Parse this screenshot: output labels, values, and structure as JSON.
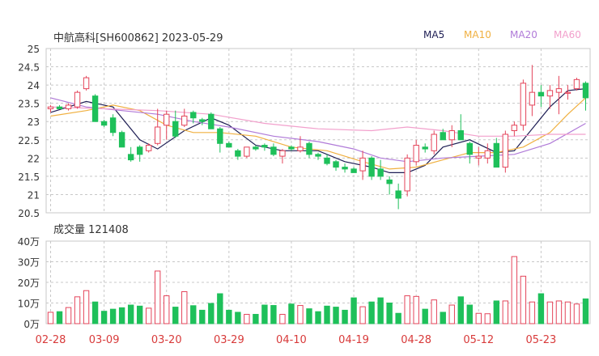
{
  "header": {
    "title": "中航高科[SH600862] 2023-05-29"
  },
  "legend": [
    {
      "label": "MA5",
      "color": "#1f1f55"
    },
    {
      "label": "MA10",
      "color": "#f0b040"
    },
    {
      "label": "MA20",
      "color": "#b07ad8"
    },
    {
      "label": "MA60",
      "color": "#f2a0cc"
    }
  ],
  "volume_header": {
    "label": "成交量 121408"
  },
  "colors": {
    "up": "#e4445a",
    "down": "#1ec05a",
    "grid": "#c8c8c8"
  },
  "chart_data": [
    {
      "type": "candlestick",
      "title": "中航高科[SH600862] 2023-05-29",
      "ylim": [
        20.5,
        25
      ],
      "y_ticks": [
        "20.5",
        "21",
        "21.5",
        "22",
        "22.5",
        "23",
        "23.5",
        "24",
        "24.5",
        "25"
      ],
      "x_tick_labels": [
        {
          "index": 0,
          "label": "02-28"
        },
        {
          "index": 6,
          "label": "03-09"
        },
        {
          "index": 13,
          "label": "03-20"
        },
        {
          "index": 20,
          "label": "03-29"
        },
        {
          "index": 27,
          "label": "04-10"
        },
        {
          "index": 34,
          "label": "04-19"
        },
        {
          "index": 41,
          "label": "04-28"
        },
        {
          "index": 48,
          "label": "05-12"
        },
        {
          "index": 55,
          "label": "05-23"
        }
      ],
      "ohlc": [
        [
          23.35,
          23.45,
          23.25,
          23.4
        ],
        [
          23.4,
          23.45,
          23.35,
          23.35
        ],
        [
          23.35,
          23.5,
          23.3,
          23.45
        ],
        [
          23.4,
          23.85,
          23.35,
          23.8
        ],
        [
          23.9,
          24.25,
          23.85,
          24.2
        ],
        [
          23.7,
          23.75,
          23.0,
          23.0
        ],
        [
          23.0,
          23.05,
          22.85,
          22.9
        ],
        [
          23.1,
          23.2,
          22.6,
          22.7
        ],
        [
          22.7,
          22.75,
          22.3,
          22.3
        ],
        [
          22.1,
          22.3,
          21.9,
          21.95
        ],
        [
          22.3,
          22.35,
          21.9,
          22.1
        ],
        [
          22.2,
          22.4,
          22.15,
          22.35
        ],
        [
          22.4,
          23.35,
          22.35,
          22.85
        ],
        [
          22.9,
          23.3,
          22.5,
          23.2
        ],
        [
          23.0,
          23.3,
          22.55,
          22.6
        ],
        [
          22.9,
          23.35,
          22.85,
          23.15
        ],
        [
          23.25,
          23.3,
          22.95,
          23.1
        ],
        [
          23.05,
          23.1,
          22.9,
          23.0
        ],
        [
          23.2,
          23.25,
          22.8,
          22.8
        ],
        [
          22.8,
          22.85,
          22.15,
          22.4
        ],
        [
          22.4,
          22.45,
          22.3,
          22.3
        ],
        [
          22.2,
          22.25,
          21.95,
          22.05
        ],
        [
          22.05,
          22.3,
          22.0,
          22.3
        ],
        [
          22.3,
          22.35,
          22.2,
          22.25
        ],
        [
          22.35,
          22.4,
          22.2,
          22.3
        ],
        [
          22.3,
          22.4,
          22.05,
          22.1
        ],
        [
          22.05,
          22.25,
          21.85,
          22.2
        ],
        [
          22.3,
          22.35,
          22.2,
          22.25
        ],
        [
          22.2,
          22.6,
          22.15,
          22.3
        ],
        [
          22.4,
          22.45,
          22.0,
          22.1
        ],
        [
          22.1,
          22.15,
          21.95,
          22.05
        ],
        [
          22.0,
          22.1,
          21.8,
          21.85
        ],
        [
          21.9,
          21.95,
          21.65,
          21.75
        ],
        [
          21.75,
          21.85,
          21.6,
          21.7
        ],
        [
          21.7,
          21.75,
          21.6,
          21.6
        ],
        [
          21.65,
          22.2,
          21.4,
          22.0
        ],
        [
          22.0,
          22.05,
          21.4,
          21.5
        ],
        [
          21.7,
          21.95,
          21.4,
          21.5
        ],
        [
          21.4,
          21.5,
          21.0,
          21.3
        ],
        [
          21.1,
          21.3,
          20.6,
          20.9
        ],
        [
          21.1,
          22.1,
          20.95,
          22.0
        ],
        [
          21.9,
          22.5,
          21.8,
          22.35
        ],
        [
          22.3,
          22.4,
          22.15,
          22.25
        ],
        [
          22.2,
          22.75,
          22.1,
          22.65
        ],
        [
          22.7,
          22.8,
          22.5,
          22.5
        ],
        [
          22.5,
          22.9,
          22.3,
          22.75
        ],
        [
          22.75,
          23.2,
          22.5,
          22.5
        ],
        [
          22.4,
          22.45,
          21.85,
          22.1
        ],
        [
          22.0,
          22.3,
          21.8,
          22.05
        ],
        [
          22.0,
          22.4,
          21.85,
          22.2
        ],
        [
          22.4,
          22.55,
          21.75,
          21.75
        ],
        [
          21.75,
          22.75,
          21.6,
          22.65
        ],
        [
          22.75,
          23.0,
          22.6,
          22.9
        ],
        [
          22.9,
          24.15,
          22.75,
          24.05
        ],
        [
          23.45,
          24.55,
          23.15,
          23.8
        ],
        [
          23.8,
          24.0,
          23.4,
          23.7
        ],
        [
          23.7,
          24.0,
          23.35,
          23.85
        ],
        [
          23.8,
          24.25,
          23.2,
          23.9
        ],
        [
          23.8,
          24.0,
          23.6,
          23.8
        ],
        [
          23.9,
          24.2,
          23.85,
          24.15
        ],
        [
          24.05,
          24.1,
          23.3,
          23.65
        ]
      ],
      "ma_lines": [
        {
          "name": "MA5",
          "points": [
            [
              0,
              23.25
            ],
            [
              4,
              23.55
            ],
            [
              7,
              23.4
            ],
            [
              10,
              22.5
            ],
            [
              12,
              22.25
            ],
            [
              15,
              22.75
            ],
            [
              18,
              23.1
            ],
            [
              20,
              22.9
            ],
            [
              23,
              22.35
            ],
            [
              26,
              22.2
            ],
            [
              30,
              22.2
            ],
            [
              33,
              21.9
            ],
            [
              36,
              21.75
            ],
            [
              38,
              21.6
            ],
            [
              40,
              21.6
            ],
            [
              42,
              21.8
            ],
            [
              44,
              22.3
            ],
            [
              47,
              22.5
            ],
            [
              50,
              22.15
            ],
            [
              52,
              22.2
            ],
            [
              54,
              22.8
            ],
            [
              56,
              23.4
            ],
            [
              58,
              23.85
            ],
            [
              60,
              23.9
            ]
          ]
        },
        {
          "name": "MA10",
          "points": [
            [
              0,
              23.15
            ],
            [
              4,
              23.3
            ],
            [
              7,
              23.45
            ],
            [
              10,
              23.3
            ],
            [
              13,
              22.9
            ],
            [
              16,
              22.7
            ],
            [
              19,
              22.7
            ],
            [
              23,
              22.6
            ],
            [
              27,
              22.3
            ],
            [
              31,
              22.2
            ],
            [
              35,
              21.9
            ],
            [
              38,
              21.7
            ],
            [
              41,
              21.75
            ],
            [
              44,
              21.95
            ],
            [
              47,
              22.15
            ],
            [
              50,
              22.15
            ],
            [
              53,
              22.3
            ],
            [
              56,
              22.7
            ],
            [
              58,
              23.2
            ],
            [
              60,
              23.65
            ]
          ]
        },
        {
          "name": "MA20",
          "points": [
            [
              0,
              23.65
            ],
            [
              4,
              23.4
            ],
            [
              8,
              23.3
            ],
            [
              12,
              23.2
            ],
            [
              16,
              23.0
            ],
            [
              20,
              22.85
            ],
            [
              25,
              22.6
            ],
            [
              30,
              22.45
            ],
            [
              34,
              22.25
            ],
            [
              37,
              22.0
            ],
            [
              40,
              21.9
            ],
            [
              44,
              22.0
            ],
            [
              48,
              22.05
            ],
            [
              52,
              22.1
            ],
            [
              56,
              22.4
            ],
            [
              60,
              22.95
            ]
          ]
        },
        {
          "name": "MA60",
          "points": [
            [
              0,
              23.4
            ],
            [
              6,
              23.35
            ],
            [
              12,
              23.3
            ],
            [
              18,
              23.2
            ],
            [
              24,
              22.95
            ],
            [
              30,
              22.8
            ],
            [
              36,
              22.75
            ],
            [
              40,
              22.85
            ],
            [
              44,
              22.75
            ],
            [
              48,
              22.6
            ],
            [
              52,
              22.6
            ],
            [
              56,
              22.65
            ],
            [
              60,
              22.65
            ]
          ]
        }
      ]
    },
    {
      "type": "bar",
      "title": "成交量 121408",
      "ylim": [
        0,
        40
      ],
      "y_ticks": [
        "0万",
        "10万",
        "20万",
        "30万",
        "40万"
      ],
      "unit": "万",
      "values": [
        5.5,
        5.8,
        7.8,
        13,
        16,
        10.5,
        6,
        7,
        7.7,
        9,
        8.5,
        7.5,
        25.5,
        13.5,
        8,
        15.5,
        8.7,
        6.5,
        9.8,
        14.5,
        6.5,
        5.5,
        4.5,
        4.5,
        9,
        8.8,
        4.5,
        9.5,
        8.8,
        7.2,
        5.8,
        8.5,
        8,
        6.5,
        12.5,
        8.2,
        10.5,
        12.5,
        10,
        5,
        13.5,
        13.2,
        7,
        11.5,
        5.5,
        9,
        13,
        9,
        5,
        4.8,
        11,
        11,
        32.5,
        23,
        10.5,
        14.5,
        10.5,
        11,
        10.5,
        9.5,
        12
      ]
    }
  ]
}
